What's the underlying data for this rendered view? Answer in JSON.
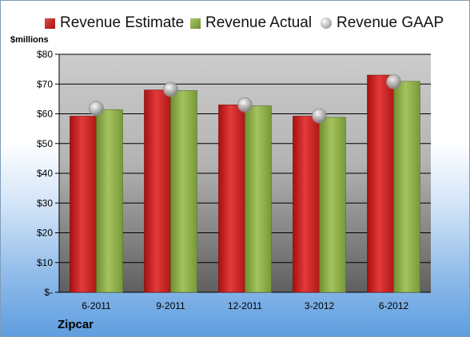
{
  "chart_data": {
    "type": "bar",
    "title": "",
    "ylabel": "$millions",
    "xlabel": "",
    "categories": [
      "6-2011",
      "9-2011",
      "12-2011",
      "3-2012",
      "6-2012"
    ],
    "series": [
      {
        "name": "Revenue Estimate",
        "type": "bar",
        "color": "#cc1f1f",
        "values": [
          59.2,
          68.0,
          63.0,
          59.2,
          73.0
        ]
      },
      {
        "name": "Revenue Actual",
        "type": "bar",
        "color": "#8fb046",
        "values": [
          61.4,
          67.8,
          62.7,
          58.8,
          70.9
        ]
      },
      {
        "name": "Revenue GAAP",
        "type": "marker",
        "color": "#c0c0c0",
        "values": [
          61.8,
          68.2,
          63.0,
          59.3,
          70.8
        ]
      }
    ],
    "ylim": [
      0,
      80
    ],
    "yticks": [
      0,
      10,
      20,
      30,
      40,
      50,
      60,
      70,
      80
    ],
    "ytick_labels": [
      "$-",
      "$10",
      "$20",
      "$30",
      "$40",
      "$50",
      "$60",
      "$70",
      "$80"
    ],
    "grid": true,
    "legend_position": "top",
    "company": "Zipcar"
  }
}
